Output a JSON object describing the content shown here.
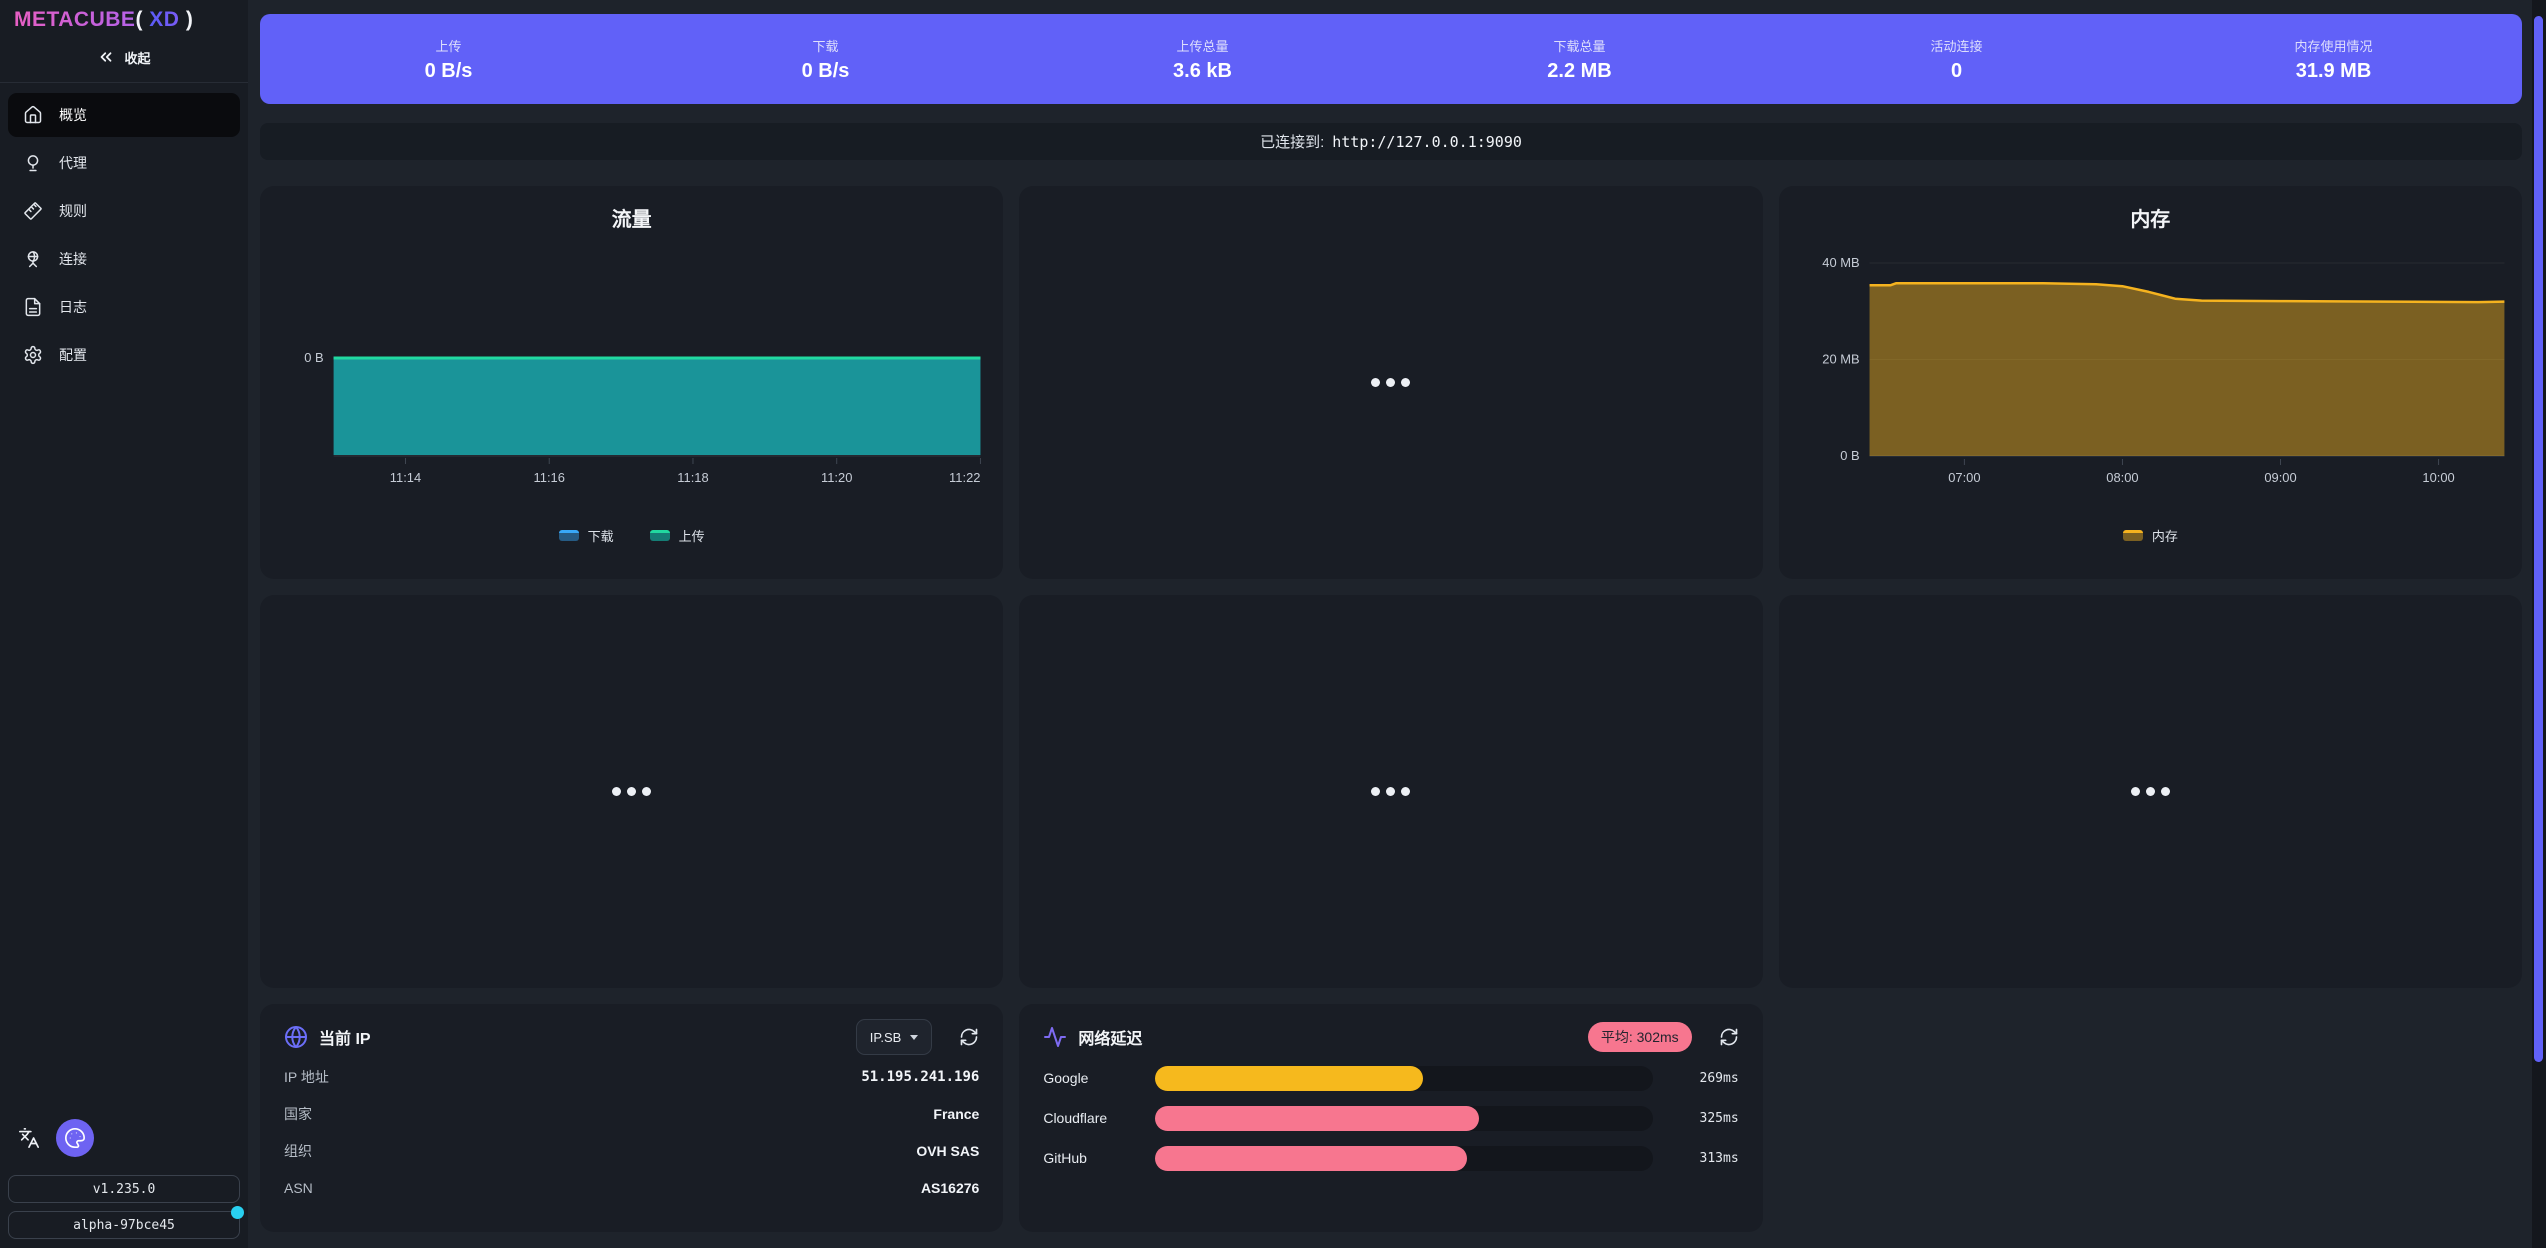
{
  "app": {
    "logo": {
      "primary": "METACUBE",
      "open_paren": "(",
      "accent": "XD",
      "close_paren": ")"
    },
    "collapse_label": "收起"
  },
  "sidebar": {
    "items": [
      {
        "label": "概览",
        "active": true
      },
      {
        "label": "代理",
        "active": false
      },
      {
        "label": "规则",
        "active": false
      },
      {
        "label": "连接",
        "active": false
      },
      {
        "label": "日志",
        "active": false
      },
      {
        "label": "配置",
        "active": false
      }
    ],
    "version": "v1.235.0",
    "build": "alpha-97bce45"
  },
  "header": {
    "stats": [
      {
        "label": "上传",
        "value": "0 B/s"
      },
      {
        "label": "下载",
        "value": "0 B/s"
      },
      {
        "label": "上传总量",
        "value": "3.6 kB"
      },
      {
        "label": "下载总量",
        "value": "2.2 MB"
      },
      {
        "label": "活动连接",
        "value": "0"
      },
      {
        "label": "内存使用情况",
        "value": "31.9 MB"
      }
    ]
  },
  "connection": {
    "label": "已连接到:",
    "url": "http://127.0.0.1:9090"
  },
  "chart_data": [
    {
      "id": "traffic",
      "type": "area",
      "title": "流量",
      "unit": "B/s",
      "x_range": [
        "11:13",
        "11:22"
      ],
      "x_ticks": [
        "11:14",
        "11:16",
        "11:18",
        "11:20",
        "11:22"
      ],
      "y_tick_label": "0 B",
      "legend_position": "bottom",
      "series": [
        {
          "name": "下载",
          "color": "#38a8f8",
          "fill": "rgba(56,168,248,0.45)",
          "values": [
            [
              "11:13",
              0
            ],
            [
              "11:22",
              0
            ]
          ]
        },
        {
          "name": "上传",
          "color": "#21d9a0",
          "fill": "rgba(20,184,166,0.62)",
          "values": [
            [
              "11:13",
              0
            ],
            [
              "11:22",
              0
            ]
          ]
        }
      ]
    },
    {
      "id": "memory",
      "type": "area",
      "title": "内存",
      "unit": "MB",
      "x_range": [
        "06:24",
        "10:25"
      ],
      "x_ticks": [
        "07:00",
        "08:00",
        "09:00",
        "10:00"
      ],
      "y_ticks": [
        {
          "label": "40 MB",
          "mb": 40
        },
        {
          "label": "20 MB",
          "mb": 20
        },
        {
          "label": "0 B",
          "mb": 0
        }
      ],
      "ylim_mb": [
        0,
        42
      ],
      "legend_position": "bottom",
      "series": [
        {
          "name": "内存",
          "color": "#f5b31f",
          "fill": "rgba(245,179,31,0.45)",
          "points": [
            [
              "06:24",
              35.4
            ],
            [
              "06:32",
              35.4
            ],
            [
              "06:34",
              35.8
            ],
            [
              "07:30",
              35.8
            ],
            [
              "07:50",
              35.6
            ],
            [
              "08:00",
              35.2
            ],
            [
              "08:10",
              34.0
            ],
            [
              "08:20",
              32.6
            ],
            [
              "08:30",
              32.2
            ],
            [
              "09:00",
              32.1
            ],
            [
              "09:40",
              32.0
            ],
            [
              "10:15",
              31.9
            ],
            [
              "10:25",
              32.0
            ]
          ]
        }
      ]
    }
  ],
  "ip_card": {
    "title": "当前 IP",
    "source_selector": "IP.SB",
    "rows": [
      {
        "label": "IP 地址",
        "value": "51.195.241.196"
      },
      {
        "label": "国家",
        "value": "France"
      },
      {
        "label": "组织",
        "value": "OVH SAS"
      },
      {
        "label": "ASN",
        "value": "AS16276"
      }
    ]
  },
  "latency_card": {
    "title": "网络延迟",
    "average_badge": "平均: 302ms",
    "scale_max_ms": 500,
    "rows": [
      {
        "name": "Google",
        "value_ms": 269,
        "display": "269ms",
        "color": "#f6b91d"
      },
      {
        "name": "Cloudflare",
        "value_ms": 325,
        "display": "325ms",
        "color": "#f7768f"
      },
      {
        "name": "GitHub",
        "value_ms": 313,
        "display": "313ms",
        "color": "#f7768f"
      }
    ]
  },
  "colors": {
    "primary": "#6161f8",
    "page_bg": "#1e232b",
    "sidebar_bg": "#181c23",
    "card_bg": "#191d25",
    "amber": "#f5b31f",
    "rose": "#f7768f",
    "teal": "#14b8a6",
    "download_blue": "#38a8f8",
    "upload_green": "#21d9a0",
    "update_dot_cyan": "#29d0f0"
  }
}
